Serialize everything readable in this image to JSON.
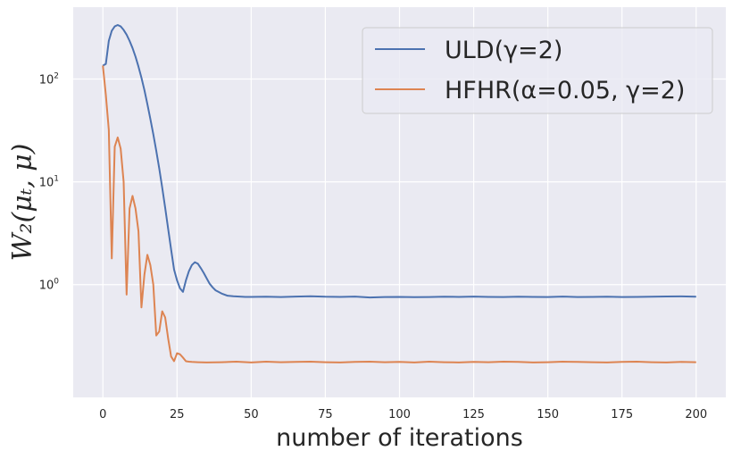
{
  "chart_data": {
    "type": "line",
    "yscale": "log",
    "xlabel": "number of iterations",
    "ylabel": "W₂(μₜ, μ)",
    "xlim": [
      -10,
      210
    ],
    "ylim": [
      0.08,
      500
    ],
    "grid": true,
    "legend_position": "top-right",
    "xticks": [
      0,
      25,
      50,
      75,
      100,
      125,
      150,
      175,
      200
    ],
    "xtick_labels": [
      "0",
      "25",
      "50",
      "75",
      "100",
      "125",
      "150",
      "175",
      "200"
    ],
    "yticks": [
      1,
      10,
      100
    ],
    "ytick_labels": [
      {
        "base": "10",
        "exp": "0"
      },
      {
        "base": "10",
        "exp": "1"
      },
      {
        "base": "10",
        "exp": "2"
      }
    ],
    "colors": {
      "background": "#eaeaf2",
      "grid": "#ffffff",
      "ULD": "#4c72b0",
      "HFHR": "#dd8452"
    },
    "series": [
      {
        "name": "ULD(γ=2)",
        "color": "#4c72b0",
        "x": [
          0,
          1,
          2,
          3,
          4,
          5,
          6,
          7,
          8,
          9,
          10,
          11,
          12,
          13,
          14,
          15,
          16,
          17,
          18,
          19,
          20,
          21,
          22,
          23,
          24,
          25,
          26,
          27,
          28,
          29,
          30,
          31,
          32,
          33,
          34,
          35,
          36,
          37,
          38,
          40,
          42,
          44,
          46,
          48,
          50,
          55,
          60,
          65,
          70,
          75,
          80,
          85,
          90,
          95,
          100,
          105,
          110,
          115,
          120,
          125,
          130,
          135,
          140,
          145,
          150,
          155,
          160,
          165,
          170,
          175,
          180,
          185,
          190,
          195,
          200
        ],
        "y": [
          135,
          140,
          235,
          295,
          325,
          335,
          325,
          300,
          270,
          235,
          200,
          165,
          132,
          103,
          78,
          57,
          41,
          29,
          20,
          13.5,
          8.8,
          5.6,
          3.5,
          2.2,
          1.4,
          1.1,
          0.92,
          0.85,
          1.1,
          1.35,
          1.55,
          1.65,
          1.6,
          1.45,
          1.3,
          1.15,
          1.02,
          0.94,
          0.88,
          0.82,
          0.78,
          0.77,
          0.765,
          0.76,
          0.76,
          0.762,
          0.758,
          0.765,
          0.77,
          0.762,
          0.76,
          0.765,
          0.75,
          0.757,
          0.76,
          0.755,
          0.758,
          0.762,
          0.76,
          0.765,
          0.76,
          0.758,
          0.762,
          0.76,
          0.758,
          0.765,
          0.757,
          0.76,
          0.762,
          0.758,
          0.76,
          0.763,
          0.766,
          0.768,
          0.762
        ]
      },
      {
        "name": "HFHR(α=0.05, γ=2)",
        "color": "#dd8452",
        "x": [
          0,
          1,
          2,
          3,
          4,
          5,
          6,
          7,
          8,
          9,
          10,
          11,
          12,
          13,
          14,
          15,
          16,
          17,
          18,
          19,
          20,
          21,
          22,
          23,
          24,
          25,
          26,
          27,
          28,
          29,
          30,
          32,
          35,
          40,
          45,
          50,
          55,
          60,
          65,
          70,
          75,
          80,
          85,
          90,
          95,
          100,
          105,
          110,
          115,
          120,
          125,
          130,
          135,
          140,
          145,
          150,
          155,
          160,
          165,
          170,
          175,
          180,
          185,
          190,
          195,
          200
        ],
        "y": [
          135,
          70,
          32,
          1.8,
          22,
          27,
          21,
          10,
          0.8,
          5.5,
          7.3,
          5.5,
          3.3,
          0.6,
          1.25,
          1.95,
          1.55,
          1.0,
          0.32,
          0.35,
          0.55,
          0.48,
          0.3,
          0.2,
          0.18,
          0.215,
          0.21,
          0.195,
          0.18,
          0.178,
          0.177,
          0.176,
          0.175,
          0.176,
          0.178,
          0.175,
          0.178,
          0.176,
          0.177,
          0.178,
          0.176,
          0.175,
          0.177,
          0.178,
          0.176,
          0.177,
          0.175,
          0.178,
          0.176,
          0.175,
          0.177,
          0.176,
          0.178,
          0.177,
          0.175,
          0.176,
          0.178,
          0.177,
          0.176,
          0.175,
          0.177,
          0.178,
          0.176,
          0.175,
          0.177,
          0.176
        ]
      }
    ]
  }
}
